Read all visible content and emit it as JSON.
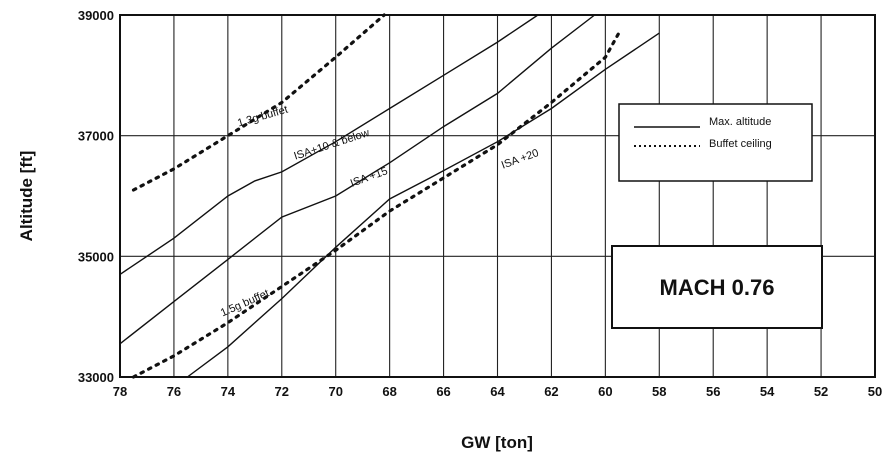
{
  "chart_data": {
    "type": "line",
    "title": "",
    "xlabel": "GW [ton]",
    "ylabel": "Altitude [ft]",
    "xlim": [
      78,
      50
    ],
    "ylim": [
      33000,
      39000
    ],
    "x_ticks": [
      "78",
      "76",
      "74",
      "72",
      "70",
      "68",
      "66",
      "64",
      "62",
      "60",
      "58",
      "56",
      "54",
      "52",
      "50"
    ],
    "y_ticks": [
      "33000",
      "35000",
      "37000",
      "39000"
    ],
    "grid": true,
    "annotation": "MACH 0.76",
    "legend": {
      "position": "right",
      "entries": [
        {
          "label": "Max. altitude",
          "style": "solid"
        },
        {
          "label": "Buffet ceiling",
          "style": "dotted"
        }
      ]
    },
    "series": [
      {
        "name": "1.3g buffet",
        "style": "dotted",
        "x": [
          77.5,
          76,
          74,
          72,
          70,
          68.2
        ],
        "y": [
          36100,
          36450,
          37000,
          37550,
          38300,
          39000
        ],
        "label_at": [
          73.6,
          37150
        ],
        "label_angle": -16
      },
      {
        "name": "ISA+10 & below",
        "style": "solid",
        "x": [
          78,
          76,
          74,
          73,
          72,
          70,
          68,
          66,
          64,
          62.5
        ],
        "y": [
          34700,
          35300,
          36000,
          36250,
          36400,
          36900,
          37450,
          38000,
          38550,
          39000
        ],
        "label_at": [
          71.5,
          36600
        ],
        "label_angle": -18
      },
      {
        "name": "ISA +15",
        "style": "solid",
        "x": [
          78,
          76,
          74,
          72,
          70,
          68,
          66,
          64,
          62,
          60.4
        ],
        "y": [
          33550,
          34250,
          34950,
          35650,
          36000,
          36550,
          37150,
          37700,
          38450,
          39000
        ],
        "label_at": [
          69.4,
          36150
        ],
        "label_angle": -20
      },
      {
        "name": "ISA +20",
        "style": "solid",
        "x": [
          75.5,
          74,
          72,
          70,
          68,
          66.5,
          64,
          62,
          60,
          58
        ],
        "y": [
          33000,
          33500,
          34300,
          35150,
          35950,
          36300,
          36900,
          37450,
          38100,
          38700
        ],
        "label_at": [
          63.8,
          36450
        ],
        "label_angle": -20
      },
      {
        "name": "1.5g buffet",
        "style": "dotted",
        "x": [
          77.5,
          76,
          74,
          72,
          70,
          68,
          66,
          64,
          62,
          60,
          59.5
        ],
        "y": [
          33000,
          33350,
          33900,
          34500,
          35100,
          35750,
          36300,
          36850,
          37550,
          38300,
          38700
        ],
        "label_at": [
          74.2,
          34000
        ],
        "label_angle": -24
      }
    ]
  }
}
